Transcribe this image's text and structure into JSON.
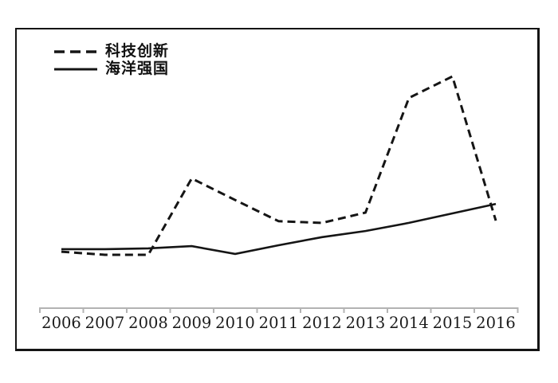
{
  "colors": {
    "background": "#ffffff",
    "line": "#151515",
    "border": "#141414",
    "axis": "#b3b3b3",
    "tick_label": "#1c1c1c"
  },
  "legend": {
    "items": [
      {
        "label": "科技创新",
        "sample": "dashed-line-sample"
      },
      {
        "label": "海洋强国",
        "sample": "solid-line-sample"
      }
    ]
  },
  "chart_data": {
    "type": "line",
    "title": "",
    "xlabel": "",
    "ylabel": "",
    "categories": [
      "2006",
      "2007",
      "2008",
      "2009",
      "2010",
      "2011",
      "2012",
      "2013",
      "2014",
      "2015",
      "2016"
    ],
    "series": [
      {
        "name": "科技创新",
        "style": "dashed",
        "values": [
          20.2,
          19.1,
          19.1,
          46.4,
          38.7,
          31.1,
          30.5,
          34.2,
          75.2,
          82.9,
          31.3
        ]
      },
      {
        "name": "海洋强国",
        "style": "solid",
        "values": [
          21.1,
          21.1,
          21.4,
          22.2,
          19.4,
          22.5,
          25.4,
          27.6,
          30.5,
          33.9,
          37.3
        ]
      }
    ],
    "ylim": [
      0,
      100
    ],
    "units": "relative level (no y-axis scale shown)",
    "grid": false,
    "legend_position": "top-left",
    "x_axis": {
      "shown": true,
      "tick_style": "segment-dividers-below-line"
    },
    "y_axis": {
      "shown": false
    }
  }
}
